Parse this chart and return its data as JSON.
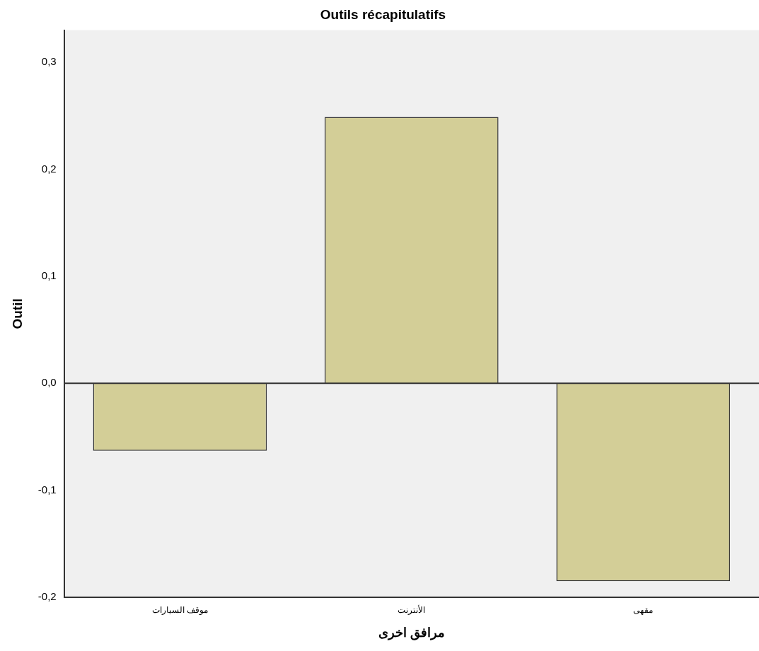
{
  "chart_data": {
    "type": "bar",
    "title": "Outils récapitulatifs",
    "xlabel": "مرافق اخرى",
    "ylabel": "Outil",
    "categories": [
      "موقف السيارات",
      "الأنترنت",
      "مقهى"
    ],
    "values": [
      -0.063,
      0.249,
      -0.185
    ],
    "color": "#d3ce97",
    "ylim": [
      -0.2,
      0.33
    ],
    "yticks": [
      {
        "value": -0.2,
        "label": "-0,2"
      },
      {
        "value": -0.1,
        "label": "-0,1"
      },
      {
        "value": 0,
        "label": "0,0"
      },
      {
        "value": 0.1,
        "label": "0,1"
      },
      {
        "value": 0.2,
        "label": "0,2"
      },
      {
        "value": 0.3,
        "label": "0,3"
      }
    ],
    "ref_lines": [
      {
        "axis": "y",
        "value": 0,
        "color": "#333333"
      }
    ],
    "grid": false,
    "legend": false
  }
}
